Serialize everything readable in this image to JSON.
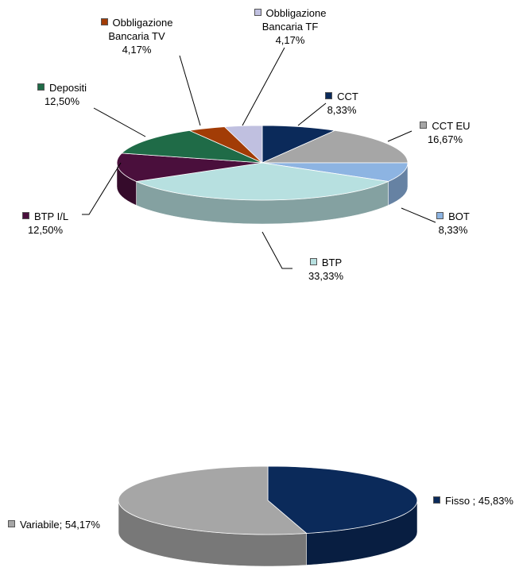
{
  "chart_data": [
    {
      "type": "pie",
      "categories": [
        "CCT",
        "CCT EU",
        "BOT",
        "BTP",
        "BTP I/L",
        "Depositi",
        "Obbligazione Bancaria TV",
        "Obbligazione Bancaria TF"
      ],
      "values": [
        8.33,
        16.67,
        8.33,
        33.33,
        12.5,
        12.5,
        4.17,
        4.17
      ],
      "value_labels": [
        "8,33%",
        "16,67%",
        "8,33%",
        "33,33%",
        "12,50%",
        "12,50%",
        "4,17%",
        "4,17%"
      ],
      "colors": [
        "#0b2a5a",
        "#a6a6a6",
        "#8db4e2",
        "#b7e0e0",
        "#4a0f3c",
        "#1f6b47",
        "#a23c06",
        "#c0c0e0"
      ]
    },
    {
      "type": "pie",
      "values": [
        45.83,
        54.17
      ],
      "value_labels": [
        "Fisso ; 45,83%",
        "Variabile; 54,17%"
      ],
      "colors": [
        "#0b2a5a",
        "#a6a6a6"
      ]
    }
  ]
}
